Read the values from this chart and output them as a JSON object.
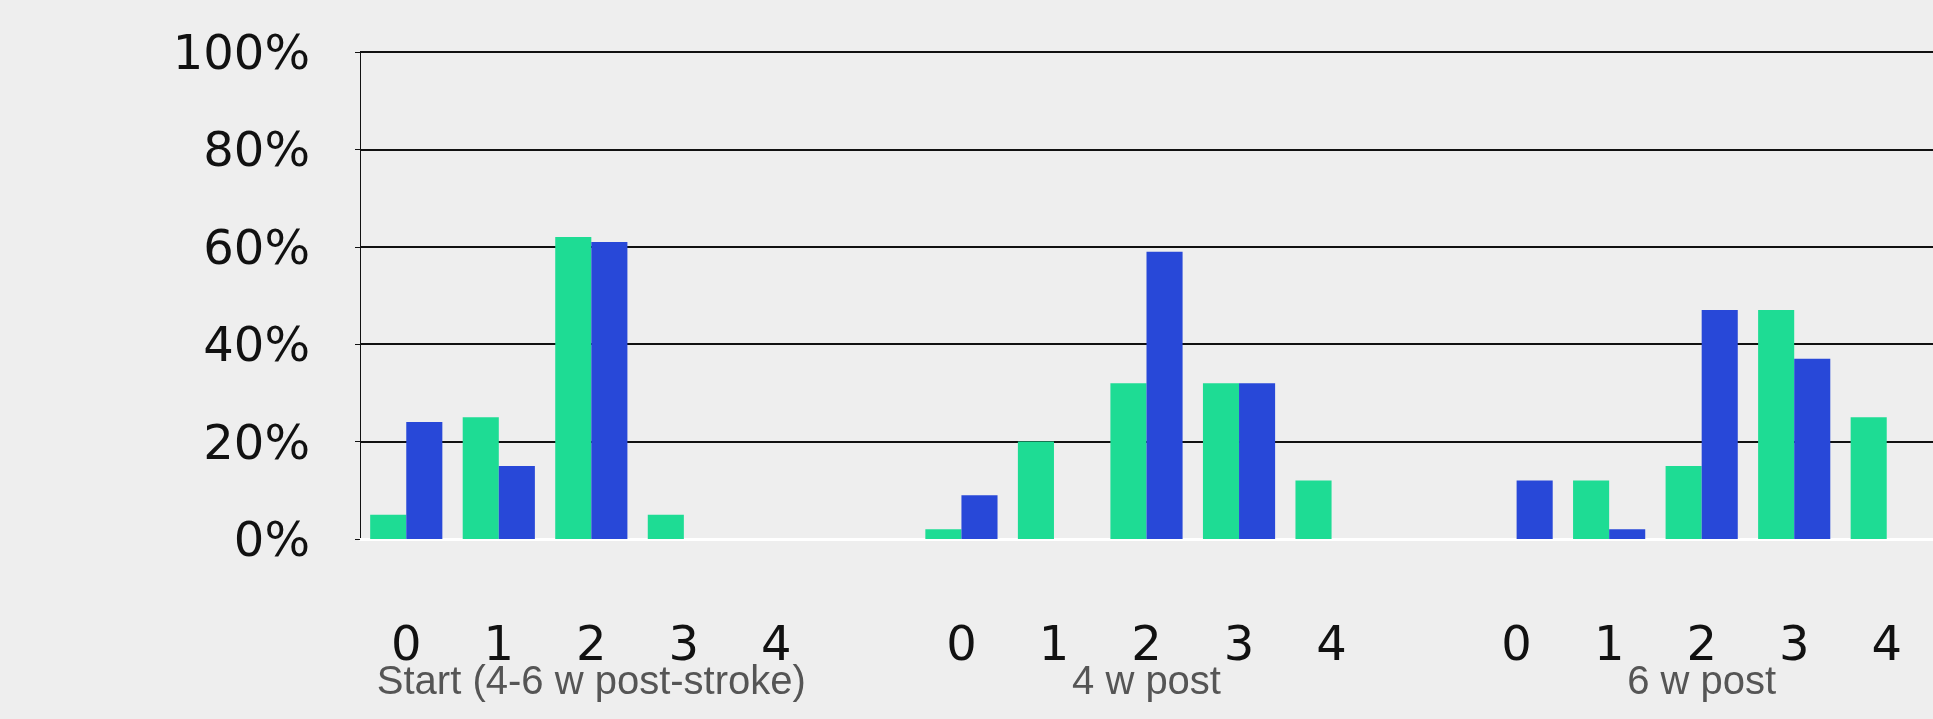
{
  "chart_data": {
    "type": "bar",
    "categories": [
      "0",
      "1",
      "2",
      "3",
      "4",
      null,
      "0",
      "1",
      "2",
      "3",
      "4",
      null,
      "0",
      "1",
      "2",
      "3",
      "4"
    ],
    "series": [
      {
        "color": "#1edc94",
        "values": [
          5,
          25,
          62,
          5,
          0,
          null,
          2,
          20,
          32,
          32,
          12,
          null,
          0,
          12,
          15,
          47,
          25
        ]
      },
      {
        "color": "#2848d8",
        "values": [
          24,
          15,
          61,
          0,
          null,
          null,
          9,
          0,
          59,
          32,
          null,
          null,
          12,
          2,
          47,
          37,
          null
        ]
      }
    ],
    "ylim": [
      0,
      100
    ],
    "yticks": [
      {
        "value": 0,
        "label": "0%"
      },
      {
        "value": 20,
        "label": "20%"
      },
      {
        "value": 40,
        "label": "40%"
      },
      {
        "value": 60,
        "label": "60%"
      },
      {
        "value": 80,
        "label": "80%"
      },
      {
        "value": 100,
        "label": "100%"
      }
    ],
    "grid": "y",
    "annotations": [
      "Start (4-6 w post-stroke)",
      "4 w post",
      "6 w post"
    ]
  }
}
